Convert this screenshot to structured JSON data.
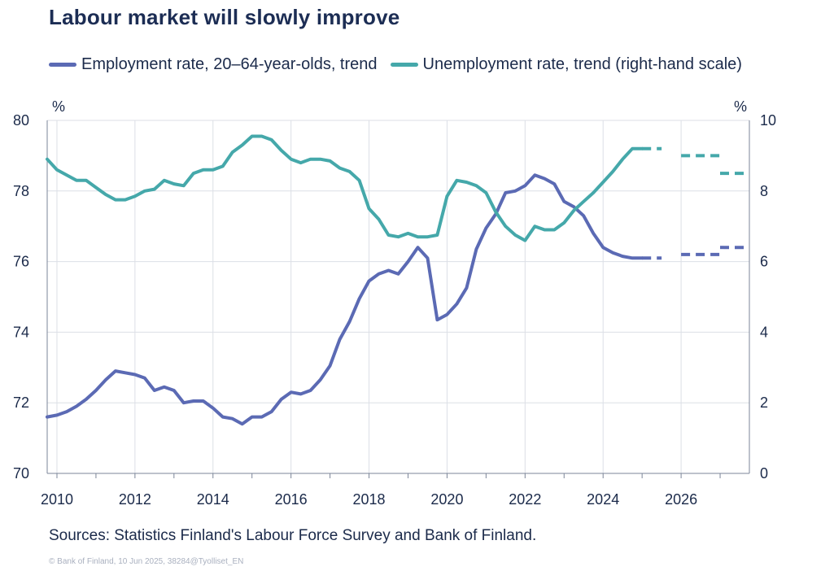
{
  "title": "Labour market will slowly improve",
  "legend": [
    {
      "label": "Employment rate, 20–64-year-olds, trend",
      "color": "#5b6ab4"
    },
    {
      "label": "Unemployment rate, trend (right-hand scale)",
      "color": "#45a8aa"
    }
  ],
  "source": "Sources: Statistics Finland's Labour Force Survey and Bank of Finland.",
  "credit": "© Bank of Finland, 10 Jun 2025, 38284@Tyolliset_EN",
  "chart_data": {
    "type": "line",
    "grid": true,
    "legend_position": "top",
    "x_ticks": [
      "2010",
      "2012",
      "2014",
      "2016",
      "2018",
      "2020",
      "2022",
      "2024",
      "2026"
    ],
    "x_range": [
      2009.75,
      2027.75
    ],
    "y_left": {
      "unit": "%",
      "range": [
        70,
        80
      ],
      "ticks": [
        "70",
        "72",
        "74",
        "76",
        "78",
        "80"
      ]
    },
    "y_right": {
      "unit": "%",
      "range": [
        0,
        10
      ],
      "ticks": [
        "0",
        "2",
        "4",
        "6",
        "8",
        "10"
      ]
    },
    "series": [
      {
        "name": "Employment rate, 20–64-year-olds, trend",
        "axis": "left",
        "color": "#5b6ab4",
        "x": [
          2009.75,
          2010.0,
          2010.25,
          2010.5,
          2010.75,
          2011.0,
          2011.25,
          2011.5,
          2011.75,
          2012.0,
          2012.25,
          2012.5,
          2012.75,
          2013.0,
          2013.25,
          2013.5,
          2013.75,
          2014.0,
          2014.25,
          2014.5,
          2014.75,
          2015.0,
          2015.25,
          2015.5,
          2015.75,
          2016.0,
          2016.25,
          2016.5,
          2016.75,
          2017.0,
          2017.25,
          2017.5,
          2017.75,
          2018.0,
          2018.25,
          2018.5,
          2018.75,
          2019.0,
          2019.25,
          2019.5,
          2019.75,
          2020.0,
          2020.25,
          2020.5,
          2020.75,
          2021.0,
          2021.25,
          2021.5,
          2021.75,
          2022.0,
          2022.25,
          2022.5,
          2022.75,
          2023.0,
          2023.25,
          2023.5,
          2023.75,
          2024.0,
          2024.25,
          2024.5,
          2024.75,
          2025.0
        ],
        "y": [
          71.6,
          71.65,
          71.75,
          71.9,
          72.1,
          72.35,
          72.65,
          72.9,
          72.85,
          72.8,
          72.7,
          72.35,
          72.45,
          72.35,
          72.0,
          72.05,
          72.05,
          71.85,
          71.6,
          71.55,
          71.4,
          71.6,
          71.6,
          71.75,
          72.1,
          72.3,
          72.25,
          72.35,
          72.65,
          73.05,
          73.8,
          74.3,
          74.95,
          75.45,
          75.65,
          75.75,
          75.65,
          76.0,
          76.4,
          76.1,
          74.35,
          74.5,
          74.8,
          75.25,
          76.35,
          76.95,
          77.35,
          77.95,
          78.0,
          78.15,
          78.45,
          78.35,
          78.2,
          77.7,
          77.55,
          77.3,
          76.8,
          76.4,
          76.25,
          76.15,
          76.1,
          76.1
        ],
        "forecast": {
          "x": [
            2025.0,
            2026.5,
            2027.5
          ],
          "y": [
            76.1,
            76.2,
            76.4
          ]
        }
      },
      {
        "name": "Unemployment rate, trend (right-hand scale)",
        "axis": "right",
        "color": "#45a8aa",
        "x": [
          2009.75,
          2010.0,
          2010.25,
          2010.5,
          2010.75,
          2011.0,
          2011.25,
          2011.5,
          2011.75,
          2012.0,
          2012.25,
          2012.5,
          2012.75,
          2013.0,
          2013.25,
          2013.5,
          2013.75,
          2014.0,
          2014.25,
          2014.5,
          2014.75,
          2015.0,
          2015.25,
          2015.5,
          2015.75,
          2016.0,
          2016.25,
          2016.5,
          2016.75,
          2017.0,
          2017.25,
          2017.5,
          2017.75,
          2018.0,
          2018.25,
          2018.5,
          2018.75,
          2019.0,
          2019.25,
          2019.5,
          2019.75,
          2020.0,
          2020.25,
          2020.5,
          2020.75,
          2021.0,
          2021.25,
          2021.5,
          2021.75,
          2022.0,
          2022.25,
          2022.5,
          2022.75,
          2023.0,
          2023.25,
          2023.5,
          2023.75,
          2024.0,
          2024.25,
          2024.5,
          2024.75,
          2025.0
        ],
        "y": [
          8.9,
          8.6,
          8.45,
          8.3,
          8.3,
          8.1,
          7.9,
          7.75,
          7.75,
          7.85,
          8.0,
          8.05,
          8.3,
          8.2,
          8.15,
          8.5,
          8.6,
          8.6,
          8.7,
          9.1,
          9.3,
          9.55,
          9.55,
          9.45,
          9.15,
          8.9,
          8.8,
          8.9,
          8.9,
          8.85,
          8.65,
          8.55,
          8.3,
          7.5,
          7.2,
          6.75,
          6.7,
          6.8,
          6.7,
          6.7,
          6.75,
          7.85,
          8.3,
          8.25,
          8.15,
          7.95,
          7.4,
          7.0,
          6.75,
          6.6,
          7.0,
          6.9,
          6.9,
          7.1,
          7.45,
          7.7,
          7.95,
          8.25,
          8.55,
          8.9,
          9.2,
          9.2
        ],
        "forecast": {
          "x": [
            2025.0,
            2026.5,
            2027.5
          ],
          "y": [
            9.2,
            9.0,
            8.5
          ]
        }
      }
    ]
  }
}
